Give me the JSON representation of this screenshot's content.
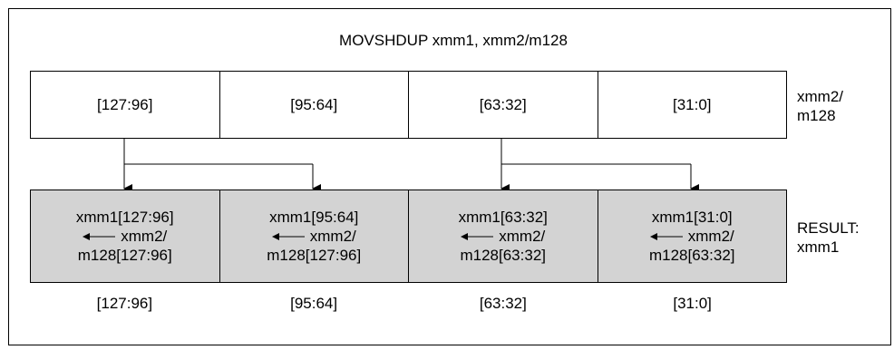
{
  "title": "MOVSHDUP xmm1, xmm2/m128",
  "source": {
    "label_line1": "xmm2/",
    "label_line2": "m128",
    "cells": [
      "[127:96]",
      "[95:64]",
      "[63:32]",
      "[31:0]"
    ]
  },
  "result": {
    "label_line1": "RESULT:",
    "label_line2": "xmm1",
    "cells": [
      {
        "line1": "xmm1[127:96]",
        "line2": "xmm2/",
        "line3": "m128[127:96]"
      },
      {
        "line1": "xmm1[95:64]",
        "line2": "xmm2/",
        "line3": "m128[127:96]"
      },
      {
        "line1": "xmm1[63:32]",
        "line2": "xmm2/",
        "line3": "m128[63:32]"
      },
      {
        "line1": "xmm1[31:0]",
        "line2": "xmm2/",
        "line3": "m128[63:32]"
      }
    ]
  },
  "bit_labels": [
    "[127:96]",
    "[95:64]",
    "[63:32]",
    "[31:0]"
  ],
  "colors": {
    "result_fill": "#d3d3d3",
    "line": "#000000"
  }
}
